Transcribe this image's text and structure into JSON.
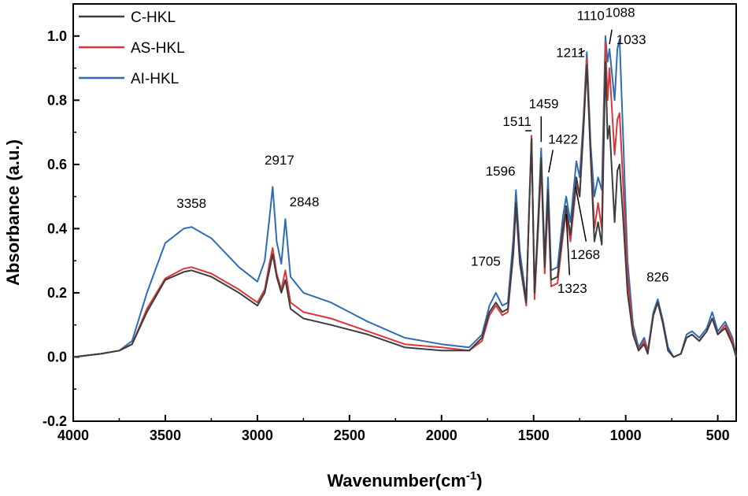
{
  "chart_data": {
    "type": "line",
    "title": "",
    "xlabel": "Wavenumber(cm",
    "xlabel_sup": "-1",
    "xlabel_close": ")",
    "ylabel": "Absorbance (a.u.)",
    "xlim": [
      4000,
      400
    ],
    "ylim": [
      -0.2,
      1.1
    ],
    "x_reversed": true,
    "x_ticks": [
      4000,
      3500,
      3000,
      2500,
      2000,
      1500,
      1000,
      500
    ],
    "x_tick_labels": [
      "4000",
      "3500",
      "3000",
      "2500",
      "2000",
      "1500",
      "1000",
      "500"
    ],
    "y_ticks": [
      -0.2,
      0.0,
      0.2,
      0.4,
      0.6,
      0.8,
      1.0
    ],
    "y_tick_labels": [
      "-0.2",
      "0.0",
      "0.2",
      "0.4",
      "0.6",
      "0.8",
      "1.0"
    ],
    "legend_position": "top-left",
    "series": [
      {
        "name": "C-HKL",
        "color": "#3d3d3d",
        "points": [
          [
            4000,
            0.0
          ],
          [
            3850,
            0.01
          ],
          [
            3750,
            0.02
          ],
          [
            3680,
            0.04
          ],
          [
            3600,
            0.14
          ],
          [
            3500,
            0.24
          ],
          [
            3400,
            0.265
          ],
          [
            3358,
            0.27
          ],
          [
            3250,
            0.25
          ],
          [
            3100,
            0.2
          ],
          [
            3000,
            0.16
          ],
          [
            2960,
            0.2
          ],
          [
            2935,
            0.27
          ],
          [
            2917,
            0.32
          ],
          [
            2895,
            0.25
          ],
          [
            2870,
            0.2
          ],
          [
            2848,
            0.24
          ],
          [
            2820,
            0.15
          ],
          [
            2750,
            0.12
          ],
          [
            2600,
            0.1
          ],
          [
            2400,
            0.07
          ],
          [
            2200,
            0.03
          ],
          [
            2000,
            0.02
          ],
          [
            1850,
            0.02
          ],
          [
            1780,
            0.06
          ],
          [
            1740,
            0.14
          ],
          [
            1705,
            0.17
          ],
          [
            1670,
            0.14
          ],
          [
            1640,
            0.15
          ],
          [
            1610,
            0.33
          ],
          [
            1596,
            0.48
          ],
          [
            1575,
            0.3
          ],
          [
            1540,
            0.17
          ],
          [
            1525,
            0.45
          ],
          [
            1511,
            0.68
          ],
          [
            1495,
            0.2
          ],
          [
            1475,
            0.42
          ],
          [
            1459,
            0.62
          ],
          [
            1440,
            0.28
          ],
          [
            1422,
            0.52
          ],
          [
            1405,
            0.24
          ],
          [
            1370,
            0.25
          ],
          [
            1340,
            0.4
          ],
          [
            1323,
            0.47
          ],
          [
            1300,
            0.38
          ],
          [
            1268,
            0.56
          ],
          [
            1250,
            0.5
          ],
          [
            1230,
            0.7
          ],
          [
            1211,
            0.91
          ],
          [
            1190,
            0.62
          ],
          [
            1170,
            0.36
          ],
          [
            1150,
            0.42
          ],
          [
            1130,
            0.35
          ],
          [
            1110,
            0.92
          ],
          [
            1098,
            0.68
          ],
          [
            1088,
            0.72
          ],
          [
            1060,
            0.42
          ],
          [
            1045,
            0.58
          ],
          [
            1033,
            0.6
          ],
          [
            1015,
            0.44
          ],
          [
            990,
            0.2
          ],
          [
            960,
            0.07
          ],
          [
            930,
            0.02
          ],
          [
            900,
            0.04
          ],
          [
            880,
            0.01
          ],
          [
            850,
            0.13
          ],
          [
            826,
            0.17
          ],
          [
            800,
            0.11
          ],
          [
            770,
            0.02
          ],
          [
            740,
            0.0
          ],
          [
            700,
            0.01
          ],
          [
            670,
            0.06
          ],
          [
            640,
            0.07
          ],
          [
            600,
            0.05
          ],
          [
            560,
            0.08
          ],
          [
            530,
            0.12
          ],
          [
            500,
            0.07
          ],
          [
            460,
            0.09
          ],
          [
            420,
            0.04
          ],
          [
            400,
            0.0
          ]
        ]
      },
      {
        "name": "AS-HKL",
        "color": "#d9383a",
        "points": [
          [
            4000,
            0.0
          ],
          [
            3850,
            0.01
          ],
          [
            3750,
            0.02
          ],
          [
            3680,
            0.04
          ],
          [
            3600,
            0.15
          ],
          [
            3500,
            0.245
          ],
          [
            3400,
            0.275
          ],
          [
            3358,
            0.28
          ],
          [
            3250,
            0.26
          ],
          [
            3100,
            0.21
          ],
          [
            3000,
            0.17
          ],
          [
            2960,
            0.21
          ],
          [
            2935,
            0.29
          ],
          [
            2917,
            0.34
          ],
          [
            2895,
            0.26
          ],
          [
            2870,
            0.21
          ],
          [
            2848,
            0.27
          ],
          [
            2820,
            0.17
          ],
          [
            2750,
            0.14
          ],
          [
            2600,
            0.12
          ],
          [
            2400,
            0.08
          ],
          [
            2200,
            0.04
          ],
          [
            2000,
            0.03
          ],
          [
            1850,
            0.02
          ],
          [
            1780,
            0.05
          ],
          [
            1740,
            0.13
          ],
          [
            1705,
            0.16
          ],
          [
            1670,
            0.13
          ],
          [
            1640,
            0.14
          ],
          [
            1610,
            0.32
          ],
          [
            1596,
            0.47
          ],
          [
            1575,
            0.29
          ],
          [
            1540,
            0.16
          ],
          [
            1525,
            0.46
          ],
          [
            1511,
            0.69
          ],
          [
            1495,
            0.18
          ],
          [
            1475,
            0.4
          ],
          [
            1459,
            0.6
          ],
          [
            1440,
            0.26
          ],
          [
            1422,
            0.49
          ],
          [
            1405,
            0.22
          ],
          [
            1370,
            0.23
          ],
          [
            1340,
            0.38
          ],
          [
            1323,
            0.45
          ],
          [
            1300,
            0.36
          ],
          [
            1268,
            0.54
          ],
          [
            1250,
            0.5
          ],
          [
            1230,
            0.72
          ],
          [
            1211,
            0.93
          ],
          [
            1190,
            0.63
          ],
          [
            1170,
            0.4
          ],
          [
            1150,
            0.48
          ],
          [
            1130,
            0.4
          ],
          [
            1110,
            0.98
          ],
          [
            1098,
            0.8
          ],
          [
            1088,
            0.9
          ],
          [
            1060,
            0.63
          ],
          [
            1045,
            0.74
          ],
          [
            1033,
            0.76
          ],
          [
            1015,
            0.55
          ],
          [
            990,
            0.25
          ],
          [
            960,
            0.08
          ],
          [
            930,
            0.02
          ],
          [
            900,
            0.05
          ],
          [
            880,
            0.02
          ],
          [
            850,
            0.13
          ],
          [
            826,
            0.17
          ],
          [
            800,
            0.11
          ],
          [
            770,
            0.02
          ],
          [
            740,
            0.0
          ],
          [
            700,
            0.01
          ],
          [
            670,
            0.06
          ],
          [
            640,
            0.07
          ],
          [
            600,
            0.05
          ],
          [
            560,
            0.08
          ],
          [
            530,
            0.12
          ],
          [
            500,
            0.07
          ],
          [
            460,
            0.1
          ],
          [
            420,
            0.05
          ],
          [
            400,
            0.0
          ]
        ]
      },
      {
        "name": "AI-HKL",
        "color": "#2e6db4",
        "points": [
          [
            4000,
            0.0
          ],
          [
            3850,
            0.01
          ],
          [
            3750,
            0.02
          ],
          [
            3680,
            0.05
          ],
          [
            3600,
            0.2
          ],
          [
            3500,
            0.355
          ],
          [
            3400,
            0.4
          ],
          [
            3358,
            0.405
          ],
          [
            3250,
            0.37
          ],
          [
            3100,
            0.28
          ],
          [
            3000,
            0.235
          ],
          [
            2960,
            0.3
          ],
          [
            2935,
            0.43
          ],
          [
            2917,
            0.53
          ],
          [
            2895,
            0.36
          ],
          [
            2870,
            0.29
          ],
          [
            2848,
            0.43
          ],
          [
            2820,
            0.25
          ],
          [
            2750,
            0.2
          ],
          [
            2600,
            0.17
          ],
          [
            2400,
            0.11
          ],
          [
            2200,
            0.06
          ],
          [
            2000,
            0.04
          ],
          [
            1850,
            0.03
          ],
          [
            1780,
            0.07
          ],
          [
            1740,
            0.16
          ],
          [
            1705,
            0.2
          ],
          [
            1670,
            0.16
          ],
          [
            1640,
            0.17
          ],
          [
            1610,
            0.37
          ],
          [
            1596,
            0.52
          ],
          [
            1575,
            0.33
          ],
          [
            1540,
            0.18
          ],
          [
            1525,
            0.45
          ],
          [
            1511,
            0.68
          ],
          [
            1495,
            0.2
          ],
          [
            1475,
            0.44
          ],
          [
            1459,
            0.65
          ],
          [
            1440,
            0.3
          ],
          [
            1422,
            0.56
          ],
          [
            1405,
            0.27
          ],
          [
            1370,
            0.28
          ],
          [
            1340,
            0.44
          ],
          [
            1323,
            0.5
          ],
          [
            1300,
            0.42
          ],
          [
            1268,
            0.61
          ],
          [
            1250,
            0.56
          ],
          [
            1230,
            0.74
          ],
          [
            1211,
            0.95
          ],
          [
            1190,
            0.66
          ],
          [
            1170,
            0.5
          ],
          [
            1150,
            0.56
          ],
          [
            1130,
            0.52
          ],
          [
            1110,
            1.0
          ],
          [
            1098,
            0.92
          ],
          [
            1088,
            0.96
          ],
          [
            1060,
            0.8
          ],
          [
            1045,
            0.96
          ],
          [
            1033,
            0.99
          ],
          [
            1015,
            0.7
          ],
          [
            990,
            0.3
          ],
          [
            960,
            0.1
          ],
          [
            930,
            0.03
          ],
          [
            900,
            0.06
          ],
          [
            880,
            0.02
          ],
          [
            850,
            0.14
          ],
          [
            826,
            0.18
          ],
          [
            800,
            0.12
          ],
          [
            770,
            0.03
          ],
          [
            740,
            0.0
          ],
          [
            700,
            0.01
          ],
          [
            670,
            0.07
          ],
          [
            640,
            0.08
          ],
          [
            600,
            0.06
          ],
          [
            560,
            0.09
          ],
          [
            530,
            0.14
          ],
          [
            500,
            0.08
          ],
          [
            460,
            0.11
          ],
          [
            420,
            0.06
          ],
          [
            400,
            0.0
          ]
        ]
      }
    ],
    "annotations": [
      {
        "text": "3358",
        "x": 3358,
        "y": 0.41,
        "lx": 3358,
        "ly": 0.465
      },
      {
        "text": "2917",
        "x": 2917,
        "y": 0.54,
        "lx": 2880,
        "ly": 0.6
      },
      {
        "text": "2848",
        "x": 2848,
        "y": 0.44,
        "lx": 2745,
        "ly": 0.47
      },
      {
        "text": "1705",
        "x": 1705,
        "y": 0.2,
        "lx": 1760,
        "ly": 0.285
      },
      {
        "text": "1596",
        "x": 1596,
        "y": 0.53,
        "lx": 1680,
        "ly": 0.565
      },
      {
        "text": "1511",
        "x": 1511,
        "y": 0.69,
        "lx": 1590,
        "ly": 0.72,
        "arrow_to": [
          1511,
          0.705
        ],
        "arrow_from": [
          1545,
          0.705
        ]
      },
      {
        "text": "1459",
        "x": 1459,
        "y": 0.66,
        "lx": 1445,
        "ly": 0.775,
        "arrow_to": [
          1459,
          0.67
        ],
        "arrow_from": [
          1459,
          0.75
        ]
      },
      {
        "text": "1422",
        "x": 1422,
        "y": 0.57,
        "lx": 1340,
        "ly": 0.665,
        "arrow_to": [
          1418,
          0.575
        ],
        "arrow_from": [
          1395,
          0.645
        ]
      },
      {
        "text": "1323",
        "x": 1323,
        "y": 0.45,
        "lx": 1290,
        "ly": 0.2,
        "arrow_to": [
          1323,
          0.445
        ],
        "arrow_from": [
          1305,
          0.255
        ]
      },
      {
        "text": "1268",
        "x": 1268,
        "y": 0.54,
        "lx": 1220,
        "ly": 0.305,
        "arrow_to": [
          1272,
          0.53
        ],
        "arrow_from": [
          1215,
          0.36
        ]
      },
      {
        "text": "1211",
        "x": 1211,
        "y": 0.96,
        "lx": 1300,
        "ly": 0.935,
        "arrow_to": [
          1222,
          0.955
        ],
        "arrow_from": [
          1255,
          0.945
        ]
      },
      {
        "text": "1110",
        "x": 1110,
        "y": 1.0,
        "lx": 1190,
        "ly": 1.05
      },
      {
        "text": "1088",
        "x": 1088,
        "y": 0.97,
        "lx": 1030,
        "ly": 1.06,
        "arrow_to": [
          1088,
          0.975
        ],
        "arrow_from": [
          1075,
          1.02
        ]
      },
      {
        "text": "1033",
        "x": 1033,
        "y": 0.99,
        "lx": 970,
        "ly": 0.975
      },
      {
        "text": "826",
        "x": 826,
        "y": 0.18,
        "lx": 826,
        "ly": 0.235
      }
    ]
  }
}
